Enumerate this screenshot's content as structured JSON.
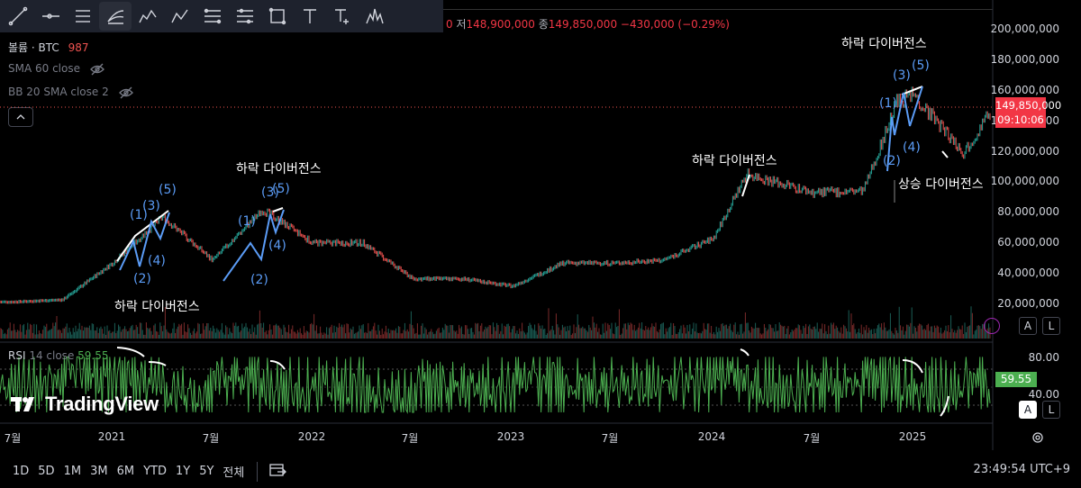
{
  "toolbar": {
    "tools": [
      {
        "name": "trend-line-tool"
      },
      {
        "name": "horizontal-ray-tool"
      },
      {
        "name": "parallel-channel-tool"
      },
      {
        "name": "pitchfork-tool",
        "active": true
      },
      {
        "name": "elliott-wave-tool",
        "text": "1 5"
      },
      {
        "name": "abcd-pattern-tool",
        "text": "A C"
      },
      {
        "name": "fib-retracement-tool"
      },
      {
        "name": "gann-tool"
      },
      {
        "name": "rectangle-tool"
      },
      {
        "name": "text-tool",
        "text": "T"
      },
      {
        "name": "anchored-text-tool",
        "text": "T"
      },
      {
        "name": "pattern-tool"
      }
    ]
  },
  "ohlc": {
    "partial": "0",
    "low_label": "저",
    "low": "148,900,000",
    "close_label": "종",
    "close": "149,850,000",
    "change": "−430,000 (−0.29%)"
  },
  "legend": {
    "volume_label": "볼륨 · BTC",
    "volume_value": "987",
    "sma": "SMA 60 close",
    "bb": "BB 20 SMA close 2"
  },
  "price_axis": {
    "ticks": [
      "200,000,000",
      "180,000,000",
      "160,000,000",
      "140,000,000",
      "120,000,000",
      "100,000,000",
      "80,000,000",
      "60,000,000",
      "40,000,000",
      "20,000,000"
    ],
    "current_price": "149,850,000",
    "countdown": "09:10:06"
  },
  "annotations": {
    "div1": "하락 다이버전스",
    "div2": "하락 다이버전스",
    "div3": "하락 다이버전스",
    "div4": "하락 다이버전스",
    "div5": "상승 다이버전스"
  },
  "waves": {
    "w1": [
      "(1)",
      "(2)",
      "(3)",
      "(4)",
      "(5)"
    ],
    "w2": [
      "(1)",
      "(2)",
      "(3)",
      "(4)",
      "(5)"
    ],
    "w3": [
      "(1)",
      "(2)",
      "(3)",
      "(4)",
      "(5)"
    ]
  },
  "rsi": {
    "label": "RSI",
    "params": "14 close",
    "value": "59.55",
    "ticks": [
      "80.00",
      "40.00"
    ]
  },
  "x_axis": [
    "7월",
    "2021",
    "7월",
    "2022",
    "7월",
    "2023",
    "7월",
    "2024",
    "7월",
    "2025"
  ],
  "timeframes": [
    "1D",
    "5D",
    "1M",
    "3M",
    "6M",
    "YTD",
    "1Y",
    "5Y",
    "전체"
  ],
  "auto_btn": "A",
  "log_btn": "L",
  "clock": "23:49:54 UTC+9",
  "logo": "TradingView",
  "colors": {
    "up": "#26a69a",
    "down": "#ef5350",
    "rsi": "#4caf50",
    "wave": "#5b9cf6",
    "bg": "#000000"
  },
  "chart_data": {
    "type": "line",
    "title": "",
    "ylabel": "",
    "ylim": [
      0,
      210000000
    ],
    "x": [
      "2020-07",
      "2020-10",
      "2021-01",
      "2021-04",
      "2021-07",
      "2021-10",
      "2022-01",
      "2022-04",
      "2022-07",
      "2022-10",
      "2023-01",
      "2023-04",
      "2023-07",
      "2023-10",
      "2024-01",
      "2024-03",
      "2024-07",
      "2024-10",
      "2024-12",
      "2025-01",
      "2025-04",
      "2025-06"
    ],
    "series": [
      {
        "values": [
          11000000,
          12500000,
          38000000,
          70000000,
          40000000,
          75000000,
          52000000,
          52000000,
          27000000,
          27000000,
          22000000,
          38000000,
          38000000,
          40000000,
          55000000,
          100000000,
          87000000,
          88000000,
          150000000,
          155000000,
          115000000,
          149850000
        ]
      }
    ],
    "rsi_range": [
      0,
      100
    ]
  }
}
